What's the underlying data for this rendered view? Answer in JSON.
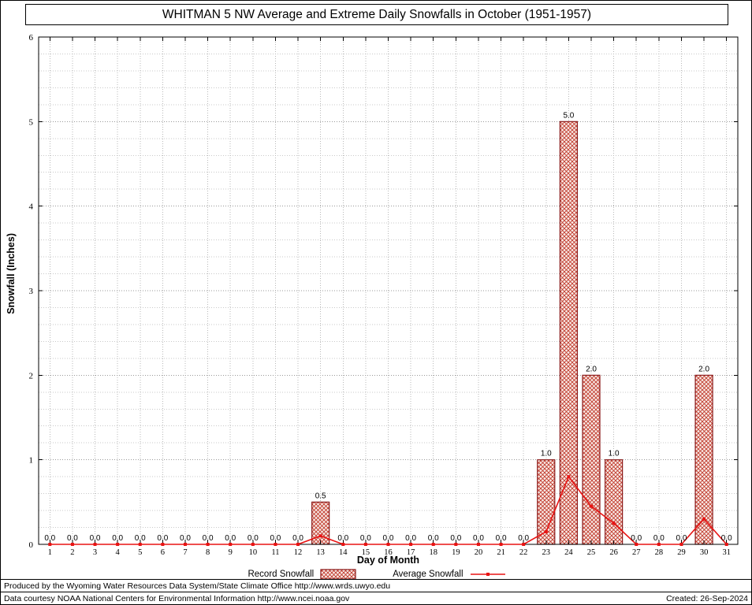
{
  "chart_data": {
    "type": "bar",
    "title": "WHITMAN 5 NW Average and Extreme Daily Snowfalls in October (1951-1957)",
    "xlabel": "Day of Month",
    "ylabel": "Snowfall (Inches)",
    "ylim": [
      0,
      6
    ],
    "y_major_step": 1,
    "y_minor_step": 0.2,
    "grid": true,
    "legend_position": "bottom",
    "categories": [
      1,
      2,
      3,
      4,
      5,
      6,
      7,
      8,
      9,
      10,
      11,
      12,
      13,
      14,
      15,
      16,
      17,
      18,
      19,
      20,
      21,
      22,
      23,
      24,
      25,
      26,
      27,
      28,
      29,
      30,
      31
    ],
    "series": [
      {
        "name": "Record Snowfall",
        "type": "bar",
        "values": [
          0,
          0,
          0,
          0,
          0,
          0,
          0,
          0,
          0,
          0,
          0,
          0,
          0.5,
          0,
          0,
          0,
          0,
          0,
          0,
          0,
          0,
          0,
          1,
          5,
          2,
          1,
          0,
          0,
          0,
          2,
          0
        ]
      },
      {
        "name": "Average Snowfall",
        "type": "line",
        "values": [
          0,
          0,
          0,
          0,
          0,
          0,
          0,
          0,
          0,
          0,
          0,
          0,
          0.1,
          0,
          0,
          0,
          0,
          0,
          0,
          0,
          0,
          0,
          0.15,
          0.8,
          0.45,
          0.25,
          0,
          0,
          0,
          0.3,
          0
        ]
      }
    ]
  },
  "legend": {
    "record_label": "Record Snowfall",
    "average_label": "Average Snowfall"
  },
  "footer": {
    "line1": "Produced by the Wyoming Water Resources Data System/State Climate Office http://www.wrds.uwyo.edu",
    "line2": "Data courtesy NOAA National Centers for Environmental Information http://www.ncei.noaa.gov",
    "created": "Created: 26-Sep-2024"
  },
  "colors": {
    "bar_edge": "#8b1a1a",
    "bar_hatch": "#c0392b",
    "bar_fill": "#f9ece8",
    "line": "#e81313",
    "grid_major": "#999999",
    "grid_minor": "#c9c9c9",
    "axis": "#000000"
  }
}
